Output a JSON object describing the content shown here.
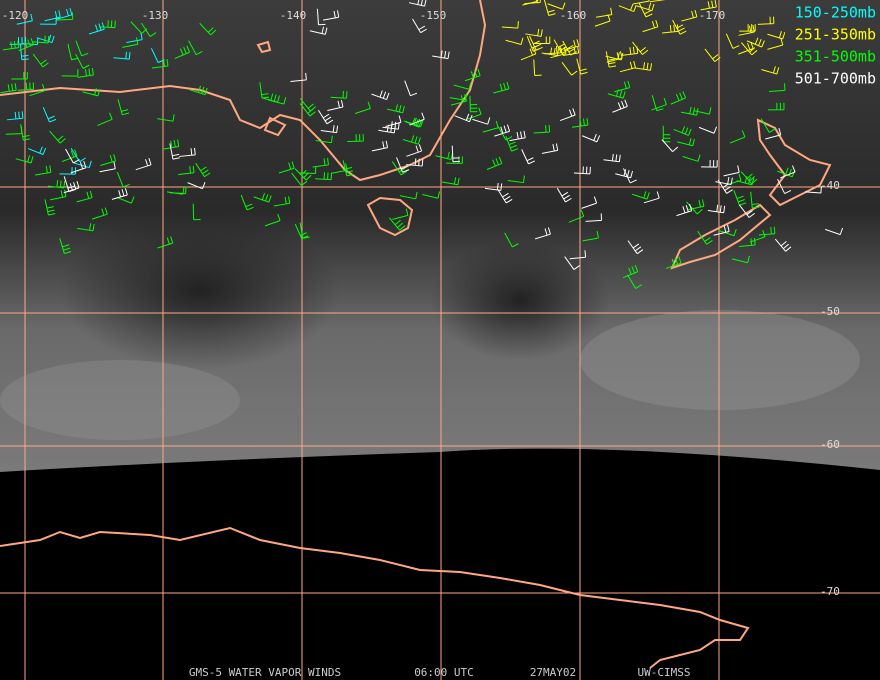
{
  "map": {
    "lon_labels": [
      "-120",
      "-130",
      "-140",
      "-150",
      "-160",
      "-170"
    ],
    "lat_labels": [
      "-40",
      "-50",
      "-60",
      "-70"
    ],
    "legend": [
      {
        "label": "150-250mb",
        "color": "#00ffff"
      },
      {
        "label": "251-350mb",
        "color": "#ffff00"
      },
      {
        "label": "351-500mb",
        "color": "#00ff00"
      },
      {
        "label": "501-700mb",
        "color": "#ffffff"
      }
    ],
    "footer": [
      "GMS-5 WATER VAPOR WINDS",
      "06:00 UTC",
      "27MAY02",
      "UW-CIMSS"
    ]
  }
}
